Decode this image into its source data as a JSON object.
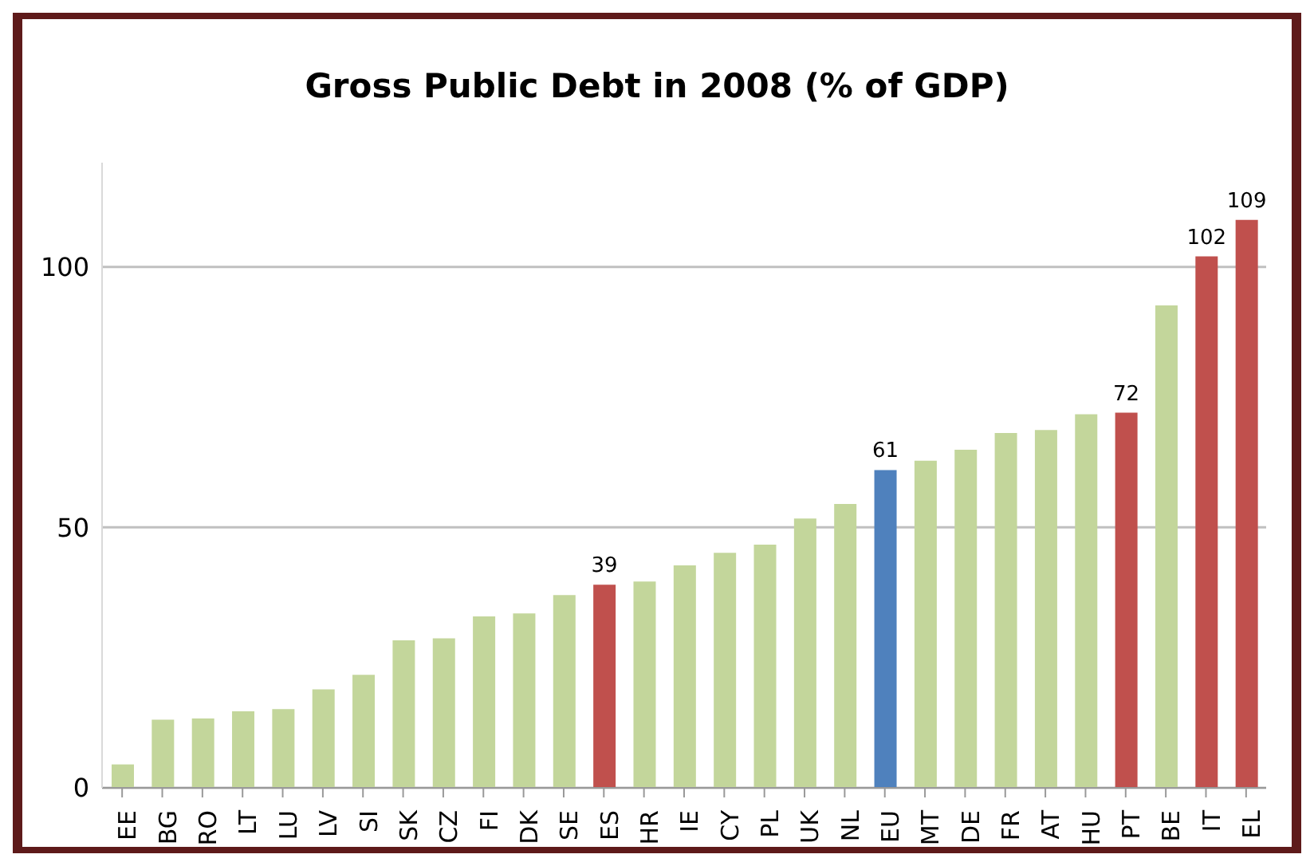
{
  "chart_data": {
    "type": "bar",
    "title": "Gross Public Debt in 2008 (% of GDP)",
    "categories": [
      "EE",
      "BG",
      "RO",
      "LT",
      "LU",
      "LV",
      "SI",
      "SK",
      "CZ",
      "FI",
      "DK",
      "SE",
      "ES",
      "HR",
      "IE",
      "CY",
      "PL",
      "UK",
      "NL",
      "EU",
      "MT",
      "DE",
      "FR",
      "AT",
      "HU",
      "PT",
      "BE",
      "IT",
      "EL"
    ],
    "values": [
      4.5,
      13.1,
      13.3,
      14.7,
      15.1,
      18.9,
      21.7,
      28.3,
      28.7,
      32.9,
      33.5,
      37.0,
      39,
      39.6,
      42.7,
      45.1,
      46.7,
      51.7,
      54.5,
      61,
      62.8,
      64.9,
      68.1,
      68.7,
      71.7,
      72,
      92.6,
      102,
      109
    ],
    "colors": [
      "#c3d69b",
      "#c3d69b",
      "#c3d69b",
      "#c3d69b",
      "#c3d69b",
      "#c3d69b",
      "#c3d69b",
      "#c3d69b",
      "#c3d69b",
      "#c3d69b",
      "#c3d69b",
      "#c3d69b",
      "#c0504d",
      "#c3d69b",
      "#c3d69b",
      "#c3d69b",
      "#c3d69b",
      "#c3d69b",
      "#c3d69b",
      "#4f81bd",
      "#c3d69b",
      "#c3d69b",
      "#c3d69b",
      "#c3d69b",
      "#c3d69b",
      "#c0504d",
      "#c3d69b",
      "#c0504d",
      "#c0504d"
    ],
    "value_labels": [
      null,
      null,
      null,
      null,
      null,
      null,
      null,
      null,
      null,
      null,
      null,
      null,
      "39",
      null,
      null,
      null,
      null,
      null,
      null,
      "61",
      null,
      null,
      null,
      null,
      null,
      "72",
      null,
      "102",
      "109"
    ],
    "ylim": [
      0,
      120
    ],
    "yticks": [
      0,
      50,
      100
    ],
    "grid": "y"
  }
}
